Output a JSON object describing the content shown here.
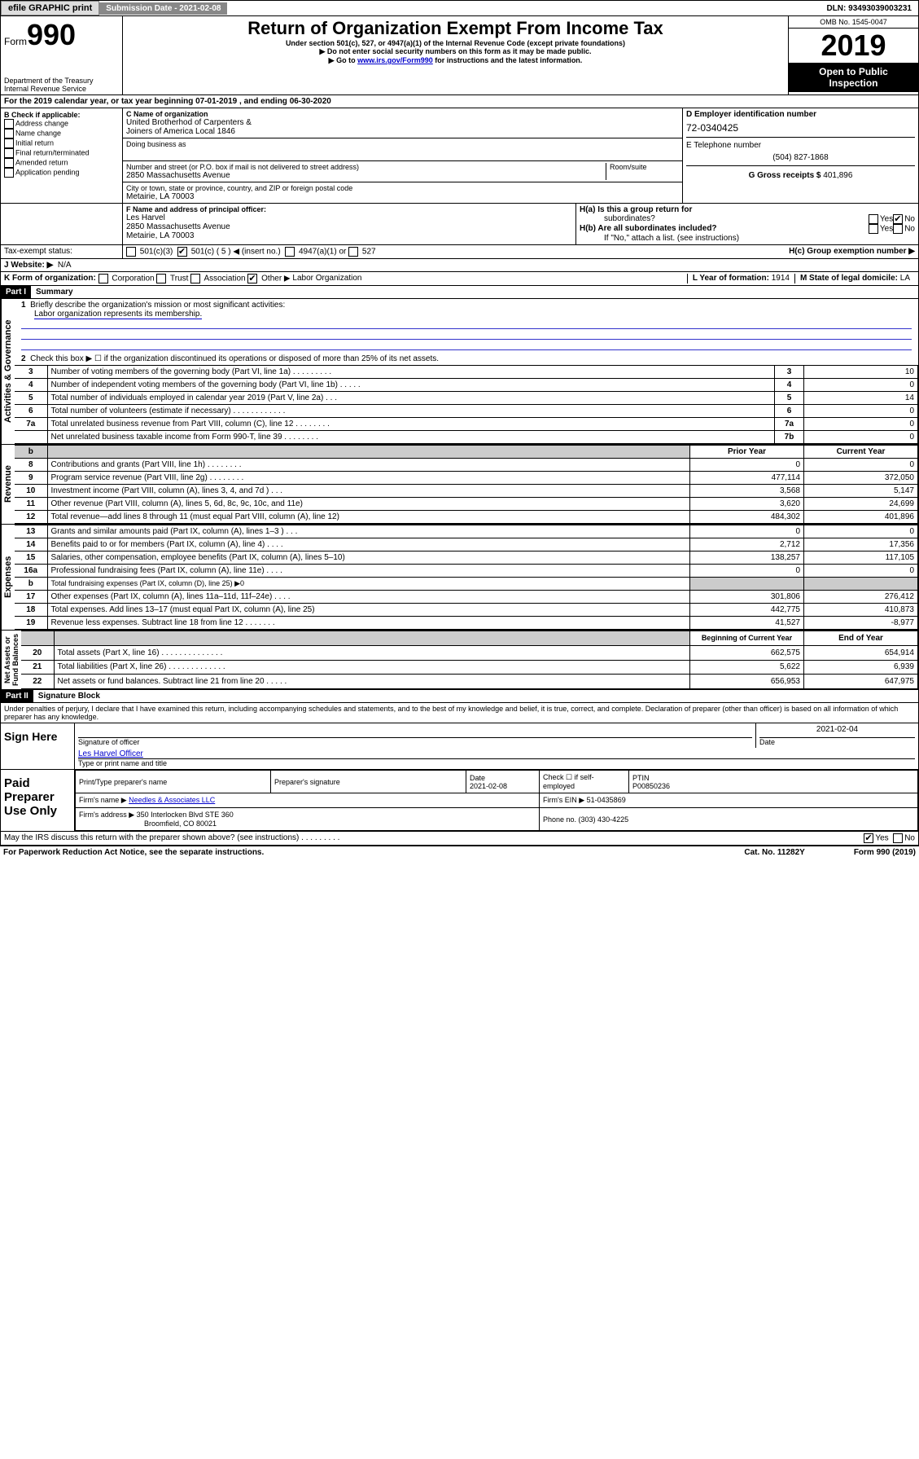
{
  "topbar": {
    "efile": "efile GRAPHIC print",
    "submission_label": "Submission Date - 2021-02-08",
    "dln": "DLN: 93493039003231"
  },
  "hdr": {
    "form": "Form",
    "num": "990",
    "dept": "Department of the Treasury",
    "irs": "Internal Revenue Service",
    "title": "Return of Organization Exempt From Income Tax",
    "sub1": "Under section 501(c), 527, or 4947(a)(1) of the Internal Revenue Code (except private foundations)",
    "sub2": "▶ Do not enter social security numbers on this form as it may be made public.",
    "sub3a": "▶ Go to ",
    "sub3link": "www.irs.gov/Form990",
    "sub3b": " for instructions and the latest information.",
    "omb": "OMB No. 1545-0047",
    "year": "2019",
    "open1": "Open to Public",
    "open2": "Inspection"
  },
  "A": "For the 2019 calendar year, or tax year beginning 07-01-2019    , and ending 06-30-2020",
  "B": {
    "hdr": "B Check if applicable:",
    "items": [
      "Address change",
      "Name change",
      "Initial return",
      "Final return/terminated",
      "Amended return",
      "Application pending"
    ]
  },
  "C": {
    "nameL": "C Name of organization",
    "name1": "United Brotherhod of Carpenters &",
    "name2": "Joiners of America Local 1846",
    "dba": "Doing business as",
    "addrL": "Number and street (or P.O. box if mail is not delivered to street address)",
    "room": "Room/suite",
    "addr": "2850 Massachusetts Avenue",
    "cityL": "City or town, state or province, country, and ZIP or foreign postal code",
    "city": "Metairie, LA  70003"
  },
  "D": {
    "label": "D Employer identification number",
    "ein": "72-0340425",
    "telL": "E Telephone number",
    "tel": "(504) 827-1868",
    "grossL": "G Gross receipts $ ",
    "gross": "401,896"
  },
  "F": {
    "label": "F  Name and address of principal officer:",
    "name": "Les Harvel",
    "addr1": "2850 Massachusetts Avenue",
    "addr2": "Metairie, LA  70003"
  },
  "H": {
    "a": "H(a)  Is this a group return for",
    "a2": "subordinates?",
    "b": "H(b)  Are all subordinates included?",
    "note": "If \"No,\" attach a list. (see instructions)",
    "c": "H(c)  Group exemption number ▶"
  },
  "I": {
    "label": "Tax-exempt status:",
    "opts": [
      "501(c)(3)",
      "501(c) ( 5 ) ◀ (insert no.)",
      "4947(a)(1) or",
      "527"
    ]
  },
  "J": {
    "label": "J    Website: ▶",
    "val": "N/A"
  },
  "K": {
    "label": "K Form of organization:",
    "opts": [
      "Corporation",
      "Trust",
      "Association",
      "Other ▶"
    ],
    "other": "Labor Organization"
  },
  "L": {
    "label": "L Year of formation: ",
    "val": "1914"
  },
  "M": {
    "label": "M State of legal domicile: ",
    "val": "LA"
  },
  "part1": {
    "hdr": "Part I",
    "title": "Summary"
  },
  "gov": {
    "l1": "Briefly describe the organization's mission or most significant activities:",
    "l1v": "Labor organization represents its membership.",
    "l2": "Check this box ▶ ☐  if the organization discontinued its operations or disposed of more than 25% of its net assets.",
    "rows": [
      {
        "n": "3",
        "t": "Number of voting members of the governing body (Part VI, line 1a)   .    .    .    .    .    .    .    .    .",
        "b": "3",
        "v": "10"
      },
      {
        "n": "4",
        "t": "Number of independent voting members of the governing body (Part VI, line 1b)  .    .    .    .    .",
        "b": "4",
        "v": "0"
      },
      {
        "n": "5",
        "t": "Total number of individuals employed in calendar year 2019 (Part V, line 2a)  .    .    .",
        "b": "5",
        "v": "14"
      },
      {
        "n": "6",
        "t": "Total number of volunteers (estimate if necessary)   .    .    .    .    .    .    .    .    .    .    .    .",
        "b": "6",
        "v": "0"
      },
      {
        "n": "7a",
        "t": "Total unrelated business revenue from Part VIII, column (C), line 12  .    .    .    .    .    .    .    .",
        "b": "7a",
        "v": "0"
      },
      {
        "n": "",
        "t": "Net unrelated business taxable income from Form 990-T, line 39   .    .    .    .    .    .    .    .",
        "b": "7b",
        "v": "0"
      }
    ]
  },
  "rev": {
    "hdr_prior": "Prior Year",
    "hdr_curr": "Current Year",
    "rows": [
      {
        "n": "8",
        "t": "Contributions and grants (Part VIII, line 1h)   .    .    .    .    .    .    .    .",
        "p": "0",
        "c": "0"
      },
      {
        "n": "9",
        "t": "Program service revenue (Part VIII, line 2g)   .    .    .    .    .    .    .    .",
        "p": "477,114",
        "c": "372,050"
      },
      {
        "n": "10",
        "t": "Investment income (Part VIII, column (A), lines 3, 4, and 7d )   .    .    .",
        "p": "3,568",
        "c": "5,147"
      },
      {
        "n": "11",
        "t": "Other revenue (Part VIII, column (A), lines 5, 6d, 8c, 9c, 10c, and 11e)",
        "p": "3,620",
        "c": "24,699"
      },
      {
        "n": "12",
        "t": "Total revenue—add lines 8 through 11 (must equal Part VIII, column (A), line 12)",
        "p": "484,302",
        "c": "401,896"
      }
    ]
  },
  "exp": {
    "rows": [
      {
        "n": "13",
        "t": "Grants and similar amounts paid (Part IX, column (A), lines 1–3 )   .    .    .",
        "p": "0",
        "c": "0"
      },
      {
        "n": "14",
        "t": "Benefits paid to or for members (Part IX, column (A), line 4)   .    .    .    .",
        "p": "2,712",
        "c": "17,356"
      },
      {
        "n": "15",
        "t": "Salaries, other compensation, employee benefits (Part IX, column (A), lines 5–10)",
        "p": "138,257",
        "c": "117,105"
      },
      {
        "n": "16a",
        "t": "Professional fundraising fees (Part IX, column (A), line 11e)   .    .    .    .",
        "p": "0",
        "c": "0"
      },
      {
        "n": "b",
        "t": "Total fundraising expenses (Part IX, column (D), line 25) ▶0",
        "gray": true
      },
      {
        "n": "17",
        "t": "Other expenses (Part IX, column (A), lines 11a–11d, 11f–24e)   .    .    .    .",
        "p": "301,806",
        "c": "276,412"
      },
      {
        "n": "18",
        "t": "Total expenses. Add lines 13–17 (must equal Part IX, column (A), line 25)",
        "p": "442,775",
        "c": "410,873"
      },
      {
        "n": "19",
        "t": "Revenue less expenses. Subtract line 18 from line 12   .    .    .    .    .    .    .",
        "p": "41,527",
        "c": "-8,977"
      }
    ]
  },
  "net": {
    "hdr_b": "Beginning of Current Year",
    "hdr_e": "End of Year",
    "rows": [
      {
        "n": "20",
        "t": "Total assets (Part X, line 16)   .    .    .    .    .    .    .    .    .    .    .    .    .    .",
        "p": "662,575",
        "c": "654,914"
      },
      {
        "n": "21",
        "t": "Total liabilities (Part X, line 26)   .    .    .    .    .    .    .    .    .    .    .    .    .",
        "p": "5,622",
        "c": "6,939"
      },
      {
        "n": "22",
        "t": "Net assets or fund balances. Subtract line 21 from line 20   .    .    .    .    .",
        "p": "656,953",
        "c": "647,975"
      }
    ]
  },
  "part2": {
    "hdr": "Part II",
    "title": "Signature Block",
    "decl": "Under penalties of perjury, I declare that I have examined this return, including accompanying schedules and statements, and to the best of my knowledge and belief, it is true, correct, and complete. Declaration of preparer (other than officer) is based on all information of which preparer has any knowledge."
  },
  "sign": {
    "here": "Sign Here",
    "sigoff": "Signature of officer",
    "date": "2021-02-04",
    "dateL": "Date",
    "name": "Les Harvel Officer",
    "nameL": "Type or print name and title"
  },
  "paid": {
    "label": "Paid Preparer Use Only",
    "h1": "Print/Type preparer's name",
    "h2": "Preparer's signature",
    "h3": "Date",
    "h3v": "2021-02-08",
    "h4": "Check ☐ if self-employed",
    "h5": "PTIN",
    "h5v": "P00850236",
    "firmL": "Firm's name    ▶",
    "firm": "Needles & Associates LLC",
    "einL": "Firm's EIN ▶",
    "ein": "51-0435869",
    "addrL": "Firm's address ▶",
    "addr1": "350 Interlocken Blvd STE 360",
    "addr2": "Broomfield, CO  80021",
    "phL": "Phone no. ",
    "ph": "(303) 430-4225"
  },
  "discuss": "May the IRS discuss this return with the preparer shown above? (see instructions)    .    .    .    .    .    .    .    .    .",
  "footer": {
    "l": "For Paperwork Reduction Act Notice, see the separate instructions.",
    "m": "Cat. No. 11282Y",
    "r": "Form 990 (2019)"
  }
}
